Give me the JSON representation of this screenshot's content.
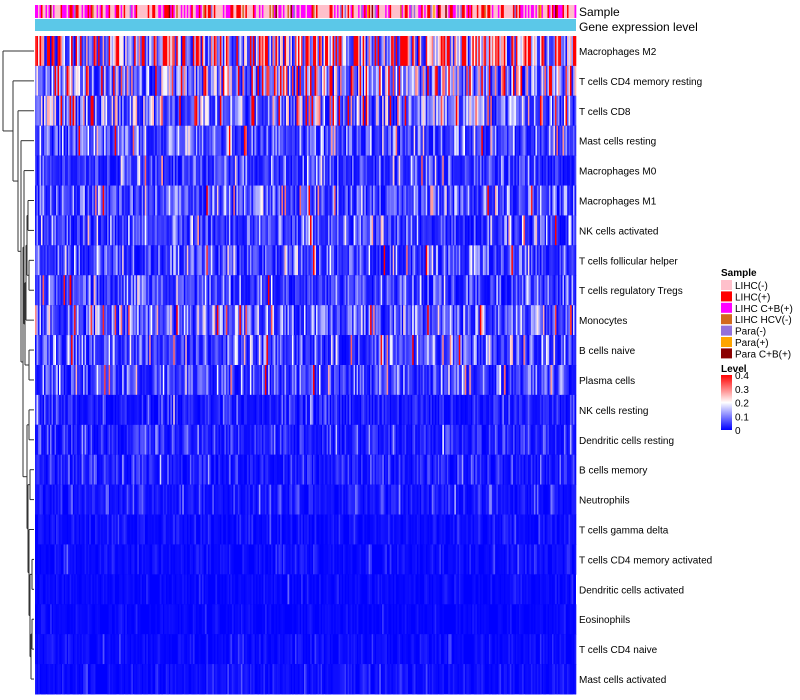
{
  "chart_data": {
    "type": "heatmap",
    "annotation_labels": {
      "sample": "Sample",
      "gene_expression": "Gene expression level"
    },
    "rows": [
      {
        "label": "Macrophages M2",
        "mean": 0.27
      },
      {
        "label": "T cells CD4 memory resting",
        "mean": 0.17
      },
      {
        "label": "T cells CD8",
        "mean": 0.13
      },
      {
        "label": "Mast cells resting",
        "mean": 0.07
      },
      {
        "label": "Macrophages M0",
        "mean": 0.05
      },
      {
        "label": "Macrophages M1",
        "mean": 0.07
      },
      {
        "label": "NK cells activated",
        "mean": 0.06
      },
      {
        "label": "T cells follicular helper",
        "mean": 0.06
      },
      {
        "label": "T cells regulatory  Tregs",
        "mean": 0.06
      },
      {
        "label": "Monocytes",
        "mean": 0.09
      },
      {
        "label": "B cells naive",
        "mean": 0.06
      },
      {
        "label": "Plasma cells",
        "mean": 0.06
      },
      {
        "label": "NK cells resting",
        "mean": 0.025
      },
      {
        "label": "Dendritic cells resting",
        "mean": 0.03
      },
      {
        "label": "B cells memory",
        "mean": 0.025
      },
      {
        "label": "Neutrophils",
        "mean": 0.02
      },
      {
        "label": "T cells gamma delta",
        "mean": 0.012
      },
      {
        "label": "T cells CD4 memory activated",
        "mean": 0.01
      },
      {
        "label": "Dendritic cells activated",
        "mean": 0.008
      },
      {
        "label": "Eosinophils",
        "mean": 0.006
      },
      {
        "label": "T cells CD4 naive",
        "mean": 0.01
      },
      {
        "label": "Mast cells activated",
        "mean": 0.012
      }
    ],
    "legend_sample": {
      "title": "Sample",
      "entries": [
        {
          "label": "LIHC(-)",
          "color": "#FFC0CB"
        },
        {
          "label": "LIHC(+)",
          "color": "#FF0000"
        },
        {
          "label": "LIHC C+B(+)",
          "color": "#FF00FF"
        },
        {
          "label": "LIHC HCV(-)",
          "color": "#D2691E"
        },
        {
          "label": "Para(-)",
          "color": "#9370DB"
        },
        {
          "label": "Para(+)",
          "color": "#FFA500"
        },
        {
          "label": "Para C+B(+)",
          "color": "#8B0000"
        }
      ]
    },
    "legend_level": {
      "title": "Level",
      "ticks": [
        "0.4",
        "0.3",
        "0.2",
        "0.1",
        "0"
      ],
      "range": [
        0,
        0.4
      ],
      "colors": {
        "low": "#0000FF",
        "mid": "#FFFFFF",
        "high": "#FF0000"
      }
    },
    "sample_mix": [
      {
        "color": "#FFC0CB",
        "weight": 0.42
      },
      {
        "color": "#FF0000",
        "weight": 0.22
      },
      {
        "color": "#FF00FF",
        "weight": 0.26
      },
      {
        "color": "#D2691E",
        "weight": 0.03
      },
      {
        "color": "#9370DB",
        "weight": 0.04
      },
      {
        "color": "#FFA500",
        "weight": 0.01
      },
      {
        "color": "#8B0000",
        "weight": 0.02
      }
    ],
    "gene_expression_color": "#5BC8E8",
    "n_samples": 360
  }
}
